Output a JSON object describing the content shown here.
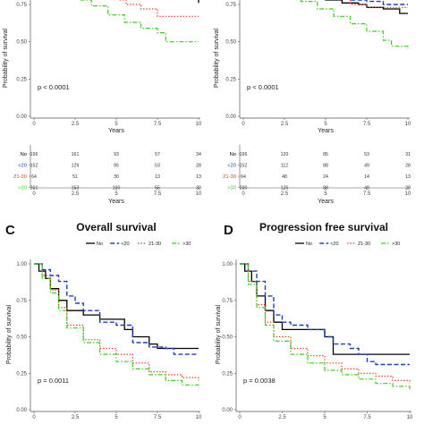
{
  "series_meta": [
    {
      "name": "No",
      "color": "#000000",
      "dash": "",
      "width": 1.3
    },
    {
      "name": "<20",
      "color": "#1f3fbf",
      "dash": "5,2.5",
      "width": 1.4
    },
    {
      "name": "21-30",
      "color": "#e8402a",
      "dash": "1.5,1.8",
      "width": 1.2
    },
    {
      "name": ">30",
      "color": "#3cd11e",
      "dash": "5,2,1.5,2",
      "width": 1.2
    }
  ],
  "chart_data": [
    {
      "id": "A",
      "type": "line",
      "title": "",
      "xlabel": "Years",
      "ylabel": "Probability of survival",
      "xlim": [
        0,
        10
      ],
      "ylim": [
        0,
        1
      ],
      "xticks": [
        "0",
        "2.5",
        "5",
        "7.5",
        "10"
      ],
      "yticks": [
        "0.00",
        "0.25",
        "0.50",
        "0.75"
      ],
      "pvalue": "p < 0.0001",
      "series": [
        {
          "name": "No",
          "x": [
            7.5,
            9.9,
            10
          ],
          "y": [
            0.79,
            0.79,
            0.76
          ]
        },
        {
          "name": "<20",
          "x": [
            7.5,
            9.7,
            10
          ],
          "y": [
            0.79,
            0.79,
            0.78
          ]
        },
        {
          "name": "21-30",
          "x": [
            5.2,
            5.6,
            6.5,
            7.5,
            8.5,
            10
          ],
          "y": [
            0.78,
            0.75,
            0.72,
            0.67,
            0.67,
            0.67
          ]
        },
        {
          "name": ">30",
          "x": [
            2.8,
            3.5,
            4.5,
            5.5,
            6.5,
            7.5,
            8,
            9,
            10
          ],
          "y": [
            0.78,
            0.74,
            0.68,
            0.63,
            0.59,
            0.56,
            0.5,
            0.5,
            0.5
          ]
        }
      ],
      "risk_table": {
        "xlabel": "Years",
        "xticks": [
          "0",
          "2.5",
          "5",
          "7.5",
          "10"
        ],
        "rows": [
          {
            "label": "No",
            "values": [
              "196",
              "161",
              "93",
              "57",
              "34"
            ]
          },
          {
            "label": "<20",
            "values": [
              "152",
              "129",
              "95",
              "53",
              "28"
            ]
          },
          {
            "label": "21-30",
            "values": [
              "64",
              "51",
              "30",
              "13",
              "13"
            ]
          },
          {
            "label": ">30",
            "values": [
              "201",
              "153",
              "100",
              "55",
              "30"
            ]
          }
        ]
      }
    },
    {
      "id": "B",
      "type": "line",
      "title": "",
      "xlabel": "Years",
      "ylabel": "Probability of survival",
      "xlim": [
        0,
        10
      ],
      "ylim": [
        0,
        1
      ],
      "xticks": [
        "0",
        "2.5",
        "5",
        "7.5",
        "10"
      ],
      "yticks": [
        "0.00",
        "0.25",
        "0.50",
        "0.75"
      ],
      "pvalue": "p < 0.0001",
      "series": [
        {
          "name": "No",
          "x": [
            4.2,
            5,
            6,
            7,
            7.5,
            8.5,
            9.5,
            10
          ],
          "y": [
            0.8,
            0.78,
            0.76,
            0.75,
            0.73,
            0.72,
            0.69,
            0.69
          ]
        },
        {
          "name": "<20",
          "x": [
            5.5,
            6.5,
            7.5,
            8.5,
            10
          ],
          "y": [
            0.8,
            0.78,
            0.77,
            0.75,
            0.75
          ]
        },
        {
          "name": "21-30",
          "x": [
            5.5,
            6.5,
            7.5,
            8,
            9,
            10
          ],
          "y": [
            0.79,
            0.75,
            0.73,
            0.73,
            0.73,
            0.73
          ]
        },
        {
          "name": ">30",
          "x": [
            2.5,
            3.5,
            4.5,
            5.5,
            6.5,
            7.5,
            8.5,
            9,
            10
          ],
          "y": [
            0.8,
            0.77,
            0.72,
            0.67,
            0.62,
            0.57,
            0.51,
            0.47,
            0.45
          ]
        }
      ],
      "risk_table": {
        "xlabel": "Years",
        "xticks": [
          "0",
          "2.5",
          "5",
          "7.5",
          "10"
        ],
        "rows": [
          {
            "label": "No",
            "values": [
              "196",
              "120",
              "85",
              "53",
              "31"
            ]
          },
          {
            "label": "<20",
            "values": [
              "152",
              "112",
              "88",
              "49",
              "28"
            ]
          },
          {
            "label": "21-30",
            "values": [
              "64",
              "48",
              "24",
              "14",
              "13"
            ]
          },
          {
            "label": ">30",
            "values": [
              "200",
              "125",
              "88",
              "49",
              "29"
            ]
          }
        ]
      }
    },
    {
      "id": "C",
      "type": "line",
      "title": "Overall survival",
      "xlabel": "",
      "ylabel": "Probability of survival",
      "xlim": [
        0,
        10
      ],
      "ylim": [
        0,
        1
      ],
      "xticks": [
        "0",
        "2.5",
        "5",
        "7.5",
        "10"
      ],
      "yticks": [
        "0.00",
        "0.25",
        "0.50",
        "0.75",
        "1.00"
      ],
      "pvalue": "p = 0.0011",
      "legend_position": "top",
      "series": [
        {
          "name": "No",
          "x": [
            0,
            0.3,
            0.7,
            1,
            1.5,
            2,
            3,
            4,
            5,
            5.5,
            6,
            6.5,
            7,
            7.5,
            8,
            10
          ],
          "y": [
            1,
            0.95,
            0.9,
            0.83,
            0.75,
            0.68,
            0.65,
            0.62,
            0.62,
            0.55,
            0.5,
            0.5,
            0.45,
            0.42,
            0.42,
            0.42
          ]
        },
        {
          "name": "<20",
          "x": [
            0,
            0.5,
            1,
            1.5,
            2,
            2.5,
            3,
            3.5,
            4,
            5,
            6,
            7,
            8,
            8.5,
            10
          ],
          "y": [
            1,
            0.96,
            0.92,
            0.88,
            0.78,
            0.73,
            0.68,
            0.68,
            0.6,
            0.58,
            0.46,
            0.43,
            0.42,
            0.38,
            0.38
          ]
        },
        {
          "name": "21-30",
          "x": [
            0,
            0.5,
            1,
            1.5,
            2,
            3,
            4,
            5,
            6,
            7,
            8,
            9,
            10
          ],
          "y": [
            1,
            0.92,
            0.82,
            0.7,
            0.58,
            0.48,
            0.42,
            0.38,
            0.32,
            0.26,
            0.24,
            0.22,
            0.2
          ]
        },
        {
          "name": ">30",
          "x": [
            0,
            0.5,
            1,
            1.5,
            2,
            3,
            4,
            5,
            6,
            7,
            8,
            9,
            10
          ],
          "y": [
            1,
            0.9,
            0.8,
            0.68,
            0.56,
            0.46,
            0.38,
            0.33,
            0.28,
            0.24,
            0.2,
            0.17,
            0.15
          ]
        }
      ]
    },
    {
      "id": "D",
      "type": "line",
      "title": "Progression free survival",
      "xlabel": "",
      "ylabel": "Probability of survival",
      "xlim": [
        0,
        10
      ],
      "ylim": [
        0,
        1
      ],
      "xticks": [
        "0",
        "2.5",
        "5",
        "7.5",
        "10"
      ],
      "yticks": [
        "0.00",
        "0.25",
        "0.50",
        "0.75",
        "1.00"
      ],
      "pvalue": "p = 0.0038",
      "legend_position": "top",
      "series": [
        {
          "name": "No",
          "x": [
            0,
            0.3,
            0.7,
            1,
            1.5,
            2,
            2.5,
            3,
            4,
            5,
            5.5,
            7,
            8,
            10
          ],
          "y": [
            1,
            0.95,
            0.88,
            0.78,
            0.68,
            0.6,
            0.55,
            0.55,
            0.55,
            0.5,
            0.38,
            0.38,
            0.38,
            0.38
          ]
        },
        {
          "name": "<20",
          "x": [
            0,
            0.5,
            1,
            1.5,
            2,
            2.5,
            3,
            4,
            5,
            5.5,
            6.5,
            7,
            7.5,
            8,
            10
          ],
          "y": [
            1,
            0.95,
            0.88,
            0.78,
            0.65,
            0.6,
            0.58,
            0.55,
            0.5,
            0.45,
            0.42,
            0.38,
            0.33,
            0.31,
            0.31
          ]
        },
        {
          "name": "21-30",
          "x": [
            0,
            0.5,
            1,
            1.5,
            2,
            3,
            4,
            5,
            6,
            7,
            8,
            9,
            10
          ],
          "y": [
            1,
            0.88,
            0.72,
            0.6,
            0.5,
            0.42,
            0.37,
            0.32,
            0.28,
            0.25,
            0.23,
            0.2,
            0.18
          ]
        },
        {
          "name": ">30",
          "x": [
            0,
            0.5,
            1,
            1.5,
            2,
            3,
            4,
            5,
            6,
            7,
            8,
            9,
            10
          ],
          "y": [
            1,
            0.86,
            0.7,
            0.58,
            0.47,
            0.38,
            0.32,
            0.27,
            0.24,
            0.21,
            0.18,
            0.16,
            0.14
          ]
        }
      ]
    }
  ]
}
